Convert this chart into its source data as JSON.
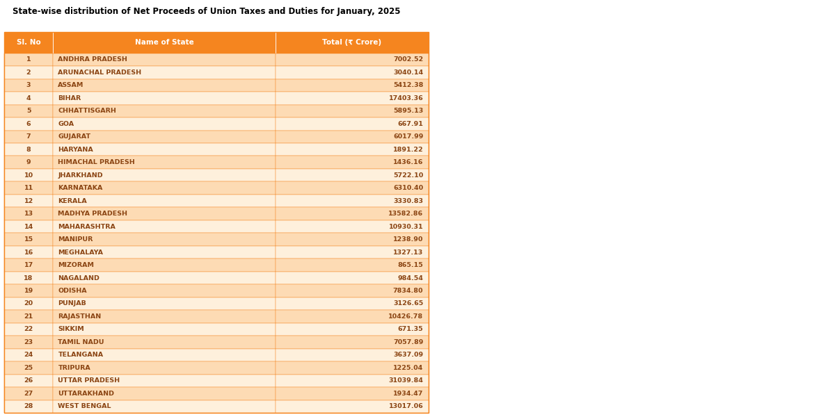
{
  "title": "State-wise distribution of Net Proceeds of Union Taxes and Duties for January, 2025",
  "columns": [
    "Sl. No",
    "Name of State",
    "Total (₹ Crore)"
  ],
  "rows": [
    [
      1,
      "ANDHRA PRADESH",
      "7002.52"
    ],
    [
      2,
      "ARUNACHAL PRADESH",
      "3040.14"
    ],
    [
      3,
      "ASSAM",
      "5412.38"
    ],
    [
      4,
      "BIHAR",
      "17403.36"
    ],
    [
      5,
      "CHHATTISGARH",
      "5895.13"
    ],
    [
      6,
      "GOA",
      "667.91"
    ],
    [
      7,
      "GUJARAT",
      "6017.99"
    ],
    [
      8,
      "HARYANA",
      "1891.22"
    ],
    [
      9,
      "HIMACHAL PRADESH",
      "1436.16"
    ],
    [
      10,
      "JHARKHAND",
      "5722.10"
    ],
    [
      11,
      "KARNATAKA",
      "6310.40"
    ],
    [
      12,
      "KERALA",
      "3330.83"
    ],
    [
      13,
      "MADHYA PRADESH",
      "13582.86"
    ],
    [
      14,
      "MAHARASHTRA",
      "10930.31"
    ],
    [
      15,
      "MANIPUR",
      "1238.90"
    ],
    [
      16,
      "MEGHALAYA",
      "1327.13"
    ],
    [
      17,
      "MIZORAM",
      "865.15"
    ],
    [
      18,
      "NAGALAND",
      "984.54"
    ],
    [
      19,
      "ODISHA",
      "7834.80"
    ],
    [
      20,
      "PUNJAB",
      "3126.65"
    ],
    [
      21,
      "RAJASTHAN",
      "10426.78"
    ],
    [
      22,
      "SIKKIM",
      "671.35"
    ],
    [
      23,
      "TAMIL NADU",
      "7057.89"
    ],
    [
      24,
      "TELANGANA",
      "3637.09"
    ],
    [
      25,
      "TRIPURA",
      "1225.04"
    ],
    [
      26,
      "UTTAR PRADESH",
      "31039.84"
    ],
    [
      27,
      "UTTARAKHAND",
      "1934.47"
    ],
    [
      28,
      "WEST BENGAL",
      "13017.06"
    ]
  ],
  "header_bg": "#F5851F",
  "odd_row_bg": "#FDDBB4",
  "even_row_bg": "#FEF0DC",
  "header_text_color": "#FFFFFF",
  "row_text_color": "#8B4513",
  "border_color": "#F5851F",
  "title_color": "#000000",
  "title_fontsize": 8.5,
  "header_fontsize": 7.5,
  "row_fontsize": 6.8,
  "fig_width": 12.0,
  "fig_height": 6.0
}
